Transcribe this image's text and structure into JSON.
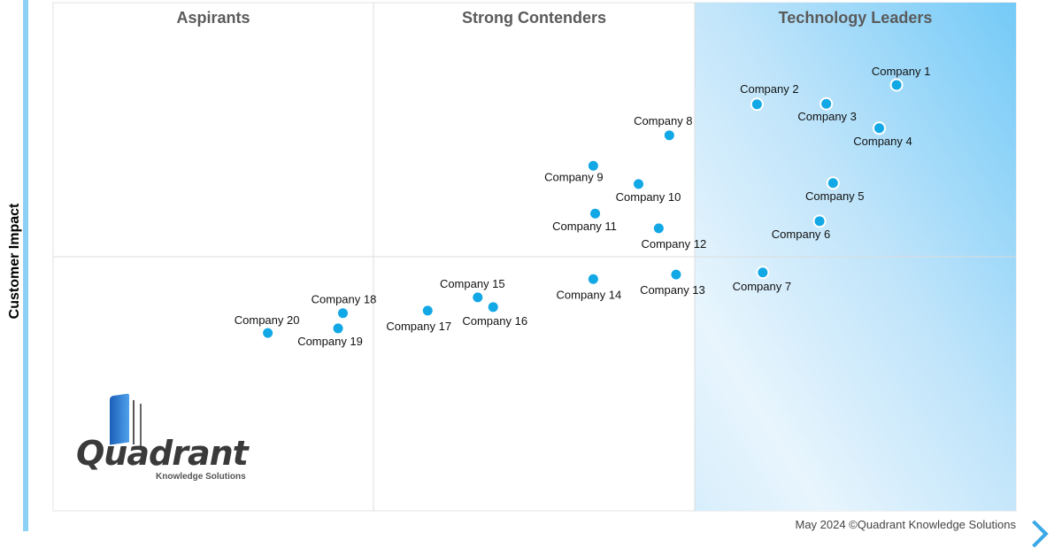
{
  "chart_data": {
    "type": "scatter",
    "title": "",
    "xlabel": "",
    "ylabel": "Customer Impact",
    "xlim": [
      0,
      10
    ],
    "ylim": [
      0,
      10
    ],
    "grid": false,
    "quadrants": [
      "Aspirants",
      "Strong Contenders",
      "Technology Leaders"
    ],
    "colors": {
      "point": "#12a8e6",
      "leaders_bg": "#7ccdf7",
      "axis_bar": "#8dd0f5"
    },
    "points": [
      {
        "label": "Company 1",
        "x": 8.76,
        "y": 8.38
      },
      {
        "label": "Company 2",
        "x": 7.31,
        "y": 8.0
      },
      {
        "label": "Company 3",
        "x": 8.03,
        "y": 8.01
      },
      {
        "label": "Company 4",
        "x": 8.58,
        "y": 7.53
      },
      {
        "label": "Company 5",
        "x": 8.1,
        "y": 6.45
      },
      {
        "label": "Company 6",
        "x": 7.96,
        "y": 5.7
      },
      {
        "label": "Company 7",
        "x": 7.37,
        "y": 4.69
      },
      {
        "label": "Company 8",
        "x": 6.4,
        "y": 7.39
      },
      {
        "label": "Company 9",
        "x": 5.61,
        "y": 6.79
      },
      {
        "label": "Company 10",
        "x": 6.08,
        "y": 6.43
      },
      {
        "label": "Company 11",
        "x": 5.63,
        "y": 5.85
      },
      {
        "label": "Company 12",
        "x": 6.29,
        "y": 5.56
      },
      {
        "label": "Company 13",
        "x": 6.47,
        "y": 4.65
      },
      {
        "label": "Company 14",
        "x": 5.61,
        "y": 4.56
      },
      {
        "label": "Company 15",
        "x": 4.41,
        "y": 4.2
      },
      {
        "label": "Company 16",
        "x": 4.57,
        "y": 4.01
      },
      {
        "label": "Company 17",
        "x": 3.89,
        "y": 3.94
      },
      {
        "label": "Company 18",
        "x": 3.01,
        "y": 3.89
      },
      {
        "label": "Company 19",
        "x": 2.96,
        "y": 3.59
      },
      {
        "label": "Company 20",
        "x": 2.23,
        "y": 3.5
      }
    ]
  },
  "logo": {
    "name": "Quadrant",
    "tagline": "Knowledge Solutions"
  },
  "footer": "May 2024 ©Quadrant Knowledge Solutions"
}
